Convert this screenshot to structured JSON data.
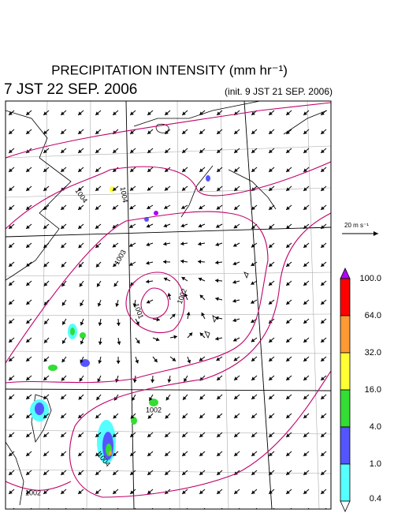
{
  "header": {
    "title": "PRECIPITATION INTENSITY (mm hr⁻¹)",
    "valid_time": "7 JST 22 SEP. 2006",
    "init_time": "(init. 9 JST 21 SEP. 2006)"
  },
  "map": {
    "isobar_labels": [
      "1004",
      "1004",
      "1003",
      "1001",
      "1002",
      "1002",
      "1004",
      "1002"
    ]
  },
  "wind_scale": {
    "label": "20 m s⁻¹"
  },
  "colorbar": {
    "labels": [
      "100.0",
      "64.0",
      "32.0",
      "16.0",
      "4.0",
      "1.0",
      "0.4"
    ],
    "colors": [
      "#b000ff",
      "#ff0000",
      "#ff9933",
      "#ffff33",
      "#33dd33",
      "#5555ff",
      "#55ffff",
      "#ffffff"
    ]
  }
}
